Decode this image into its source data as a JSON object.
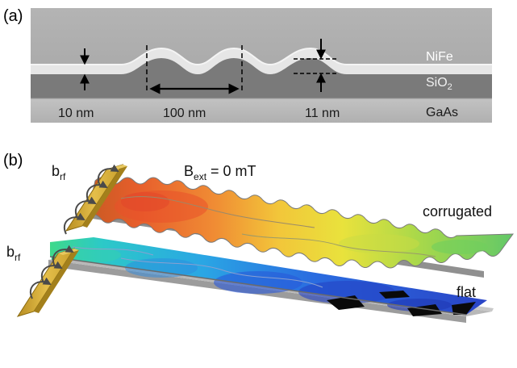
{
  "panel_a": {
    "label": "(a)",
    "layers": {
      "top": "NiFe",
      "middle_base": "SiO",
      "middle_sub": "2",
      "bottom": "GaAs"
    },
    "dims": {
      "thickness": "10 nm",
      "period": "100 nm",
      "amplitude": "11 nm"
    }
  },
  "panel_b": {
    "label": "(b)",
    "field": {
      "base": "B",
      "sub": "ext",
      "rest": " = 0 mT"
    },
    "antenna_top": {
      "base": "b",
      "sub": "rf"
    },
    "antenna_bottom": {
      "base": "b",
      "sub": "rf"
    },
    "strip_top_name": "corrugated",
    "strip_bottom_name": "flat"
  },
  "colors": {
    "sem_background": "#a8a8a8",
    "nife_layer": "#e4e4e4",
    "sio2_layer": "#7a7a7a",
    "gaas_substrate": "#b9b9b9",
    "antenna_gold": "#d4ad3a",
    "map_high": "#e4542a",
    "map_mid": "#f0d83a",
    "map_low": "#2a4fc8"
  }
}
